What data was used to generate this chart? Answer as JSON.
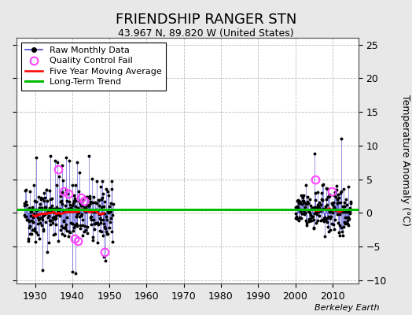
{
  "title": "FRIENDSHIP RANGER STN",
  "subtitle": "43.967 N, 89.820 W (United States)",
  "ylabel_right": "Temperature Anomaly (°C)",
  "watermark": "Berkeley Earth",
  "ylim": [
    -10.5,
    26
  ],
  "xlim": [
    1925,
    2017
  ],
  "yticks": [
    -10,
    -5,
    0,
    5,
    10,
    15,
    20,
    25
  ],
  "xticks": [
    1930,
    1940,
    1950,
    1960,
    1970,
    1980,
    1990,
    2000,
    2010
  ],
  "bg_color": "#e8e8e8",
  "plot_bg_color": "#ffffff",
  "grid_color": "#bbbbbb",
  "raw_color": "#4444cc",
  "raw_dot_color": "#000000",
  "qc_fail_color": "#ff44ff",
  "moving_avg_color": "#ff0000",
  "trend_color": "#00bb00",
  "trend_value": 0.5,
  "trend_slope": 0.0,
  "legend_fontsize": 8,
  "title_fontsize": 13,
  "subtitle_fontsize": 9
}
